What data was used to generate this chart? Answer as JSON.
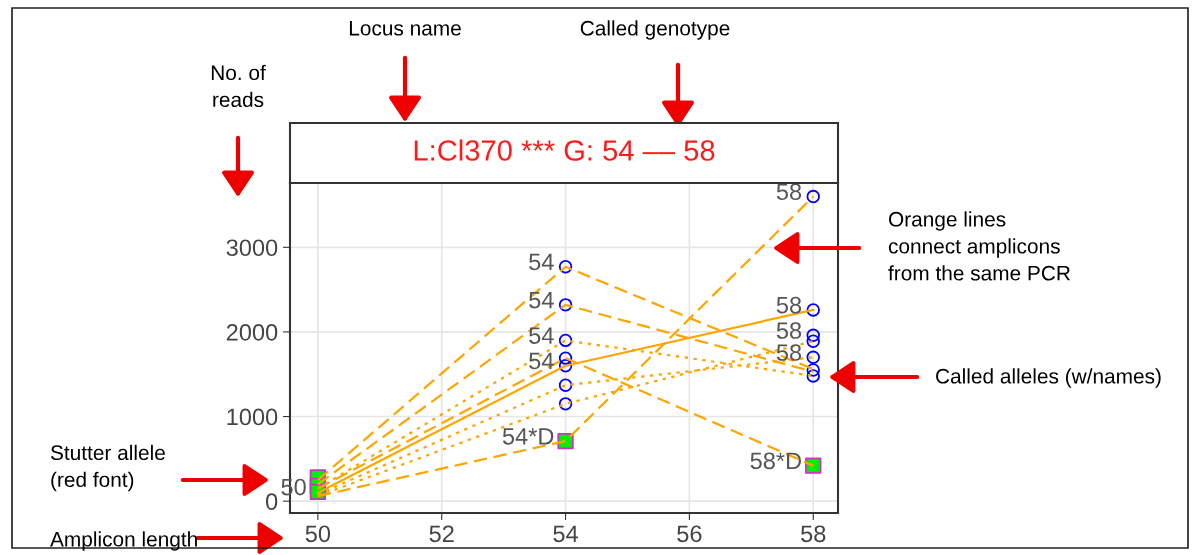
{
  "chart_data": {
    "type": "line",
    "title": "L:Cl370 *** G: 54 –– 58",
    "annotations": [
      "No. of\nreads",
      "Locus name",
      "Called genotype",
      "Orange lines\nconnect amplicons\nfrom the same PCR",
      "Called alleles (w/names)",
      "Stutter allele\n(red font)",
      "Amplicon length",
      {
        "text": "54",
        "x": 54,
        "y": 2770
      },
      {
        "text": "54",
        "x": 54,
        "y": 2320
      },
      {
        "text": "54",
        "x": 54,
        "y": 1900
      },
      {
        "text": "54",
        "x": 54,
        "y": 1600
      },
      {
        "text": "58",
        "x": 58,
        "y": 3600
      },
      {
        "text": "58",
        "x": 58,
        "y": 2260
      },
      {
        "text": "58",
        "x": 58,
        "y": 1960
      },
      {
        "text": "58",
        "x": 58,
        "y": 1700
      },
      {
        "text": "50",
        "x": 50,
        "y": 110
      },
      {
        "text": "54*D",
        "x": 54,
        "y": 710
      },
      {
        "text": "58*D",
        "x": 58,
        "y": 420
      }
    ],
    "series": [
      {
        "type": "line",
        "color": "#ffa500",
        "line_style": "dashed",
        "x": [
          50,
          54,
          58
        ],
        "values": [
          250,
          2770,
          1560
        ]
      },
      {
        "type": "line",
        "color": "#ffa500",
        "line_style": "dashed",
        "x": [
          50,
          54,
          58
        ],
        "values": [
          200,
          2320,
          1530
        ]
      },
      {
        "type": "line",
        "color": "#ffa500",
        "line_style": "dotted",
        "x": [
          50,
          54,
          58
        ],
        "values": [
          150,
          1900,
          1480
        ]
      },
      {
        "type": "line",
        "color": "#ffa500",
        "line_style": "solid",
        "x": [
          50,
          54,
          58
        ],
        "values": [
          100,
          1600,
          2260
        ]
      },
      {
        "type": "line",
        "color": "#ffa500",
        "line_style": "dashed",
        "x": [
          50,
          54,
          58
        ],
        "values": [
          150,
          1690,
          420
        ]
      },
      {
        "type": "line",
        "color": "#ffa500",
        "line_style": "dotted",
        "x": [
          50,
          54,
          58
        ],
        "values": [
          80,
          1370,
          1700
        ]
      },
      {
        "type": "line",
        "color": "#ffa500",
        "line_style": "dotted",
        "x": [
          50,
          54,
          58
        ],
        "values": [
          60,
          1150,
          1890
        ]
      },
      {
        "type": "line",
        "color": "#ffa500",
        "line_style": "dashed",
        "x": [
          50,
          54,
          58
        ],
        "values": [
          60,
          710,
          3600
        ]
      },
      {
        "type": "scatter",
        "marker": "circle",
        "color": "#0000ff",
        "x": [
          54,
          54,
          54,
          54,
          54,
          54,
          54,
          58,
          58,
          58,
          58,
          58,
          58,
          58
        ],
        "values": [
          2770,
          2320,
          1900,
          1690,
          1600,
          1370,
          1150,
          3600,
          2260,
          1960,
          1890,
          1700,
          1550,
          1480
        ]
      },
      {
        "type": "scatter",
        "marker": "square",
        "color": "#00ee00",
        "x": [
          50,
          50,
          50,
          54,
          58
        ],
        "values": [
          280,
          180,
          110,
          710,
          420
        ]
      }
    ],
    "xlim": [
      49.55,
      58.4
    ],
    "ylim": [
      -140,
      3760
    ],
    "xticks": [
      50,
      52,
      54,
      56,
      58
    ],
    "yticks": [
      0,
      1000,
      2000,
      3000
    ],
    "grid": true,
    "legend": false
  }
}
